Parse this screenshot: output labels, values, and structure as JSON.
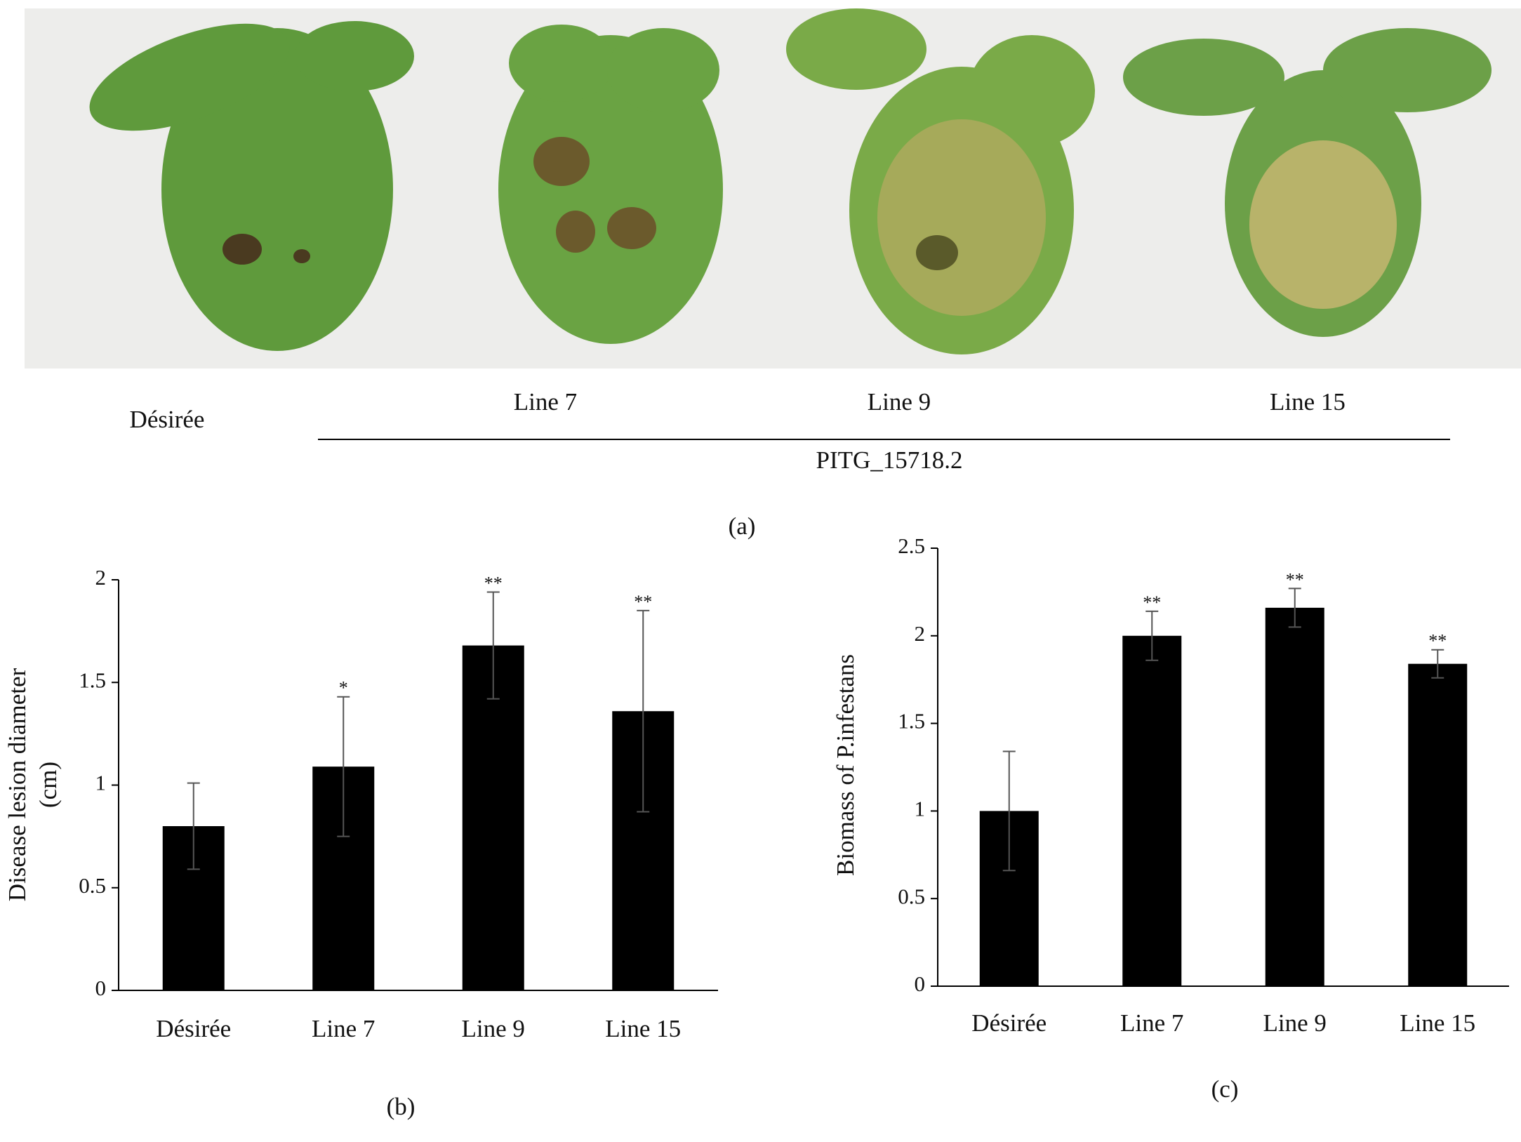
{
  "photo_panel": {
    "labels": [
      "Désirée",
      "Line 7",
      "Line 9",
      "Line 15"
    ],
    "group_label": "PITG_15718.2",
    "panel_label": "(a)"
  },
  "chart_data": [
    {
      "type": "bar",
      "panel_label": "(b)",
      "ylabel": [
        "Disease lesion diameter",
        "(cm)"
      ],
      "categories": [
        "Désirée",
        "Line 7",
        "Line 9",
        "Line 15"
      ],
      "values": [
        0.8,
        1.09,
        1.68,
        1.36
      ],
      "errors": [
        0.21,
        0.34,
        0.26,
        0.49
      ],
      "significance": [
        null,
        "*",
        "**",
        "**"
      ],
      "color": "#000000",
      "ylim": [
        0,
        2
      ],
      "yticks": [
        0,
        0.5,
        1,
        1.5,
        2
      ]
    },
    {
      "type": "bar",
      "panel_label": "(c)",
      "ylabel": [
        "Biomass of P.infestans"
      ],
      "categories": [
        "Désirée",
        "Line 7",
        "Line 9",
        "Line 15"
      ],
      "values": [
        1.0,
        2.0,
        2.16,
        1.84
      ],
      "errors": [
        0.34,
        0.14,
        0.11,
        0.08
      ],
      "significance": [
        null,
        "**",
        "**",
        "**"
      ],
      "color": "#000000",
      "ylim": [
        0,
        2.5
      ],
      "yticks": [
        0,
        0.5,
        1,
        1.5,
        2,
        2.5
      ]
    }
  ]
}
